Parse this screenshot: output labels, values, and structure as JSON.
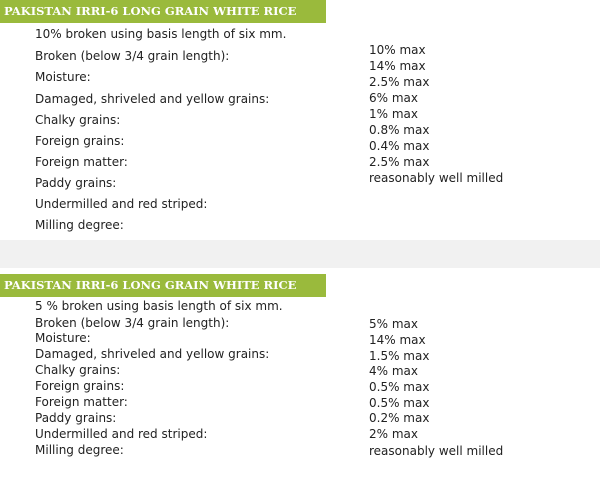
{
  "section1": {
    "title": "PAKISTAN IRRI-6 LONG GRAIN WHITE RICE",
    "intro": "10% broken using basis length of six mm.",
    "labels": [
      "Broken (below 3/4 grain length):",
      "Moisture:",
      "Damaged, shriveled and yellow grains:",
      "Chalky grains:",
      "Foreign grains:",
      "Foreign matter:",
      "Paddy grains:",
      "Undermilled and red striped:",
      "Milling degree:"
    ],
    "values": [
      "10% max",
      "14% max",
      "2.5% max",
      "6% max",
      "1% max",
      "0.8% max",
      "0.4% max",
      "2.5% max",
      "reasonably well milled"
    ]
  },
  "section2": {
    "title": "PAKISTAN IRRI-6 LONG GRAIN WHITE RICE",
    "intro": "5 % broken using basis length of six mm.",
    "labels": [
      "Broken (below 3/4 grain length):",
      "Moisture:",
      "Damaged, shriveled and yellow grains:",
      "Chalky grains:",
      "Foreign grains:",
      "Foreign matter:",
      "Paddy grains:",
      "Undermilled and red striped:",
      "Milling degree:"
    ],
    "values": [
      "5% max",
      "14% max",
      "1.5% max",
      "4% max",
      "0.5% max",
      "0.5% max",
      "0.2% max",
      "2% max",
      "reasonably well milled"
    ]
  }
}
